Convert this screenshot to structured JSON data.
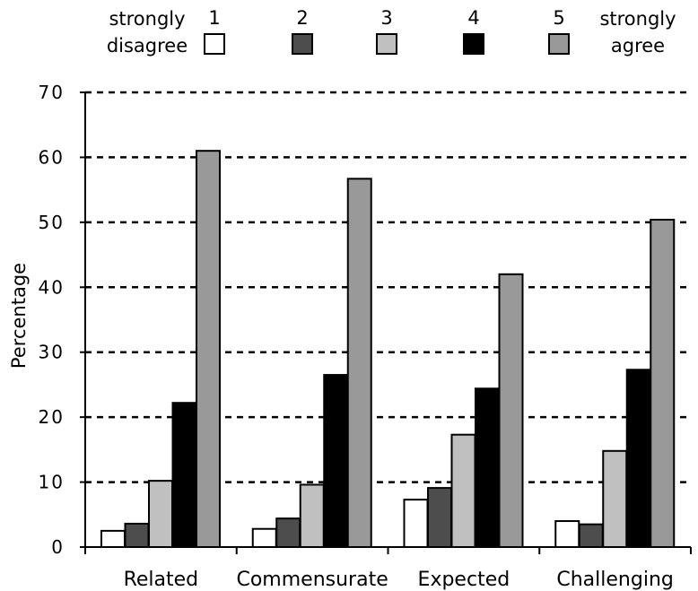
{
  "chart_data": {
    "type": "bar",
    "title": "",
    "xlabel": "",
    "ylabel": "Percentage",
    "ylim": [
      0,
      70
    ],
    "yticks": [
      0,
      10,
      20,
      30,
      40,
      50,
      60,
      70
    ],
    "ytick_labels": [
      "0",
      "10",
      "20",
      "30",
      "40",
      "50",
      "60",
      "70"
    ],
    "grid": true,
    "legend_position": "top",
    "legend": {
      "left_label_line1": "strongly",
      "left_label_line2": "disagree",
      "right_label_line1": "strongly",
      "right_label_line2": "agree"
    },
    "categories": [
      "Related",
      "Commensurate",
      "Expected",
      "Challenging"
    ],
    "series": [
      {
        "name": "1",
        "color": "#ffffff",
        "values": [
          2.5,
          2.8,
          7.3,
          4.0
        ]
      },
      {
        "name": "2",
        "color": "#4d4d4d",
        "values": [
          3.6,
          4.4,
          9.1,
          3.5
        ]
      },
      {
        "name": "3",
        "color": "#c0c0c0",
        "values": [
          10.2,
          9.6,
          17.3,
          14.8
        ]
      },
      {
        "name": "4",
        "color": "#000000",
        "values": [
          22.2,
          26.5,
          24.4,
          27.3
        ]
      },
      {
        "name": "5",
        "color": "#999999",
        "values": [
          61.0,
          56.7,
          42.0,
          50.4
        ]
      }
    ]
  }
}
